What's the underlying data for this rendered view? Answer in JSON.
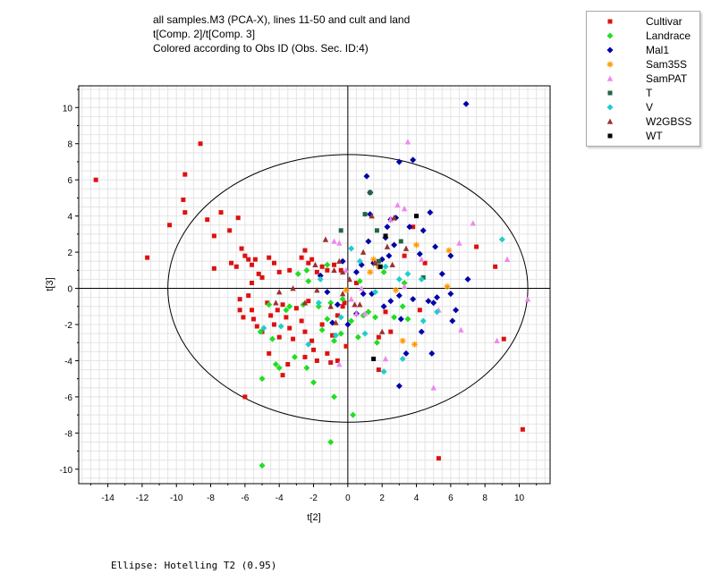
{
  "chart_data": {
    "type": "scatter",
    "title_lines": [
      "all samples.M3 (PCA-X), lines 11-50 and cult and land",
      "t[Comp. 2]/t[Comp. 3]",
      "Colored according to Obs ID (Obs. Sec. ID:4)"
    ],
    "xlabel": "t[2]",
    "ylabel": "t[3]",
    "xlim": [
      -15.7,
      11.8
    ],
    "ylim": [
      -10.8,
      11.2
    ],
    "x_ticks": [
      -14,
      -12,
      -10,
      -8,
      -6,
      -4,
      -2,
      0,
      2,
      4,
      6,
      8,
      10
    ],
    "y_ticks": [
      -10,
      -8,
      -6,
      -4,
      -2,
      0,
      2,
      4,
      6,
      8,
      10
    ],
    "grid": true,
    "legend_position": "top-right",
    "ellipse": {
      "label": "Ellipse: Hotelling T2 (0.95)",
      "center": [
        0,
        0
      ],
      "rx": 10.5,
      "ry": 7.4
    },
    "series": [
      {
        "name": "Cultivar",
        "color": "#dd1111",
        "marker": "square",
        "points": [
          [
            -14.7,
            6.0
          ],
          [
            -11.7,
            1.7
          ],
          [
            -10.4,
            3.5
          ],
          [
            -9.5,
            6.3
          ],
          [
            -9.6,
            4.9
          ],
          [
            -9.5,
            4.2
          ],
          [
            -8.6,
            8.0
          ],
          [
            -8.2,
            3.8
          ],
          [
            -7.4,
            4.2
          ],
          [
            -6.9,
            3.2
          ],
          [
            -6.4,
            3.9
          ],
          [
            -7.8,
            2.9
          ],
          [
            -7.8,
            1.1
          ],
          [
            -6.8,
            1.4
          ],
          [
            -6.5,
            1.2
          ],
          [
            -6.2,
            2.2
          ],
          [
            -5.8,
            1.6
          ],
          [
            -6.0,
            1.8
          ],
          [
            -5.6,
            1.3
          ],
          [
            -5.4,
            1.6
          ],
          [
            -5.6,
            0.3
          ],
          [
            -5.2,
            0.8
          ],
          [
            -5.0,
            0.6
          ],
          [
            -4.6,
            1.7
          ],
          [
            -4.3,
            1.4
          ],
          [
            -4.0,
            0.9
          ],
          [
            -3.4,
            1.0
          ],
          [
            -2.7,
            1.7
          ],
          [
            -2.5,
            2.1
          ],
          [
            -2.3,
            1.4
          ],
          [
            -2.1,
            1.6
          ],
          [
            -1.8,
            0.9
          ],
          [
            -1.5,
            1.2
          ],
          [
            -1.2,
            1.0
          ],
          [
            -0.8,
            1.3
          ],
          [
            -6.3,
            -0.6
          ],
          [
            -6.3,
            -1.2
          ],
          [
            -6.1,
            -1.6
          ],
          [
            -5.8,
            -0.4
          ],
          [
            -5.6,
            -1.2
          ],
          [
            -5.5,
            -1.7
          ],
          [
            -5.3,
            -2.1
          ],
          [
            -5.0,
            -2.4
          ],
          [
            -4.7,
            -0.8
          ],
          [
            -4.5,
            -1.5
          ],
          [
            -4.3,
            -2.0
          ],
          [
            -4.0,
            -2.7
          ],
          [
            -4.1,
            -1.2
          ],
          [
            -3.8,
            -0.9
          ],
          [
            -3.6,
            -1.6
          ],
          [
            -3.4,
            -2.2
          ],
          [
            -3.2,
            -2.8
          ],
          [
            -3.0,
            -1.1
          ],
          [
            -2.7,
            -1.8
          ],
          [
            -2.5,
            -2.4
          ],
          [
            -2.3,
            -0.7
          ],
          [
            -2.1,
            -2.9
          ],
          [
            -2.0,
            -3.4
          ],
          [
            -1.8,
            -4.0
          ],
          [
            -1.5,
            -2.0
          ],
          [
            -1.2,
            -3.6
          ],
          [
            -0.9,
            -2.6
          ],
          [
            -0.6,
            -1.5
          ],
          [
            -0.2,
            -0.8
          ],
          [
            -0.1,
            -3.2
          ],
          [
            -1.0,
            -4.1
          ],
          [
            -3.5,
            -4.2
          ],
          [
            -3.8,
            -4.8
          ],
          [
            -2.5,
            -3.8
          ],
          [
            -4.6,
            -3.6
          ],
          [
            -6.0,
            -6.0
          ],
          [
            -0.6,
            -4.0
          ],
          [
            -0.4,
            1.0
          ],
          [
            0.5,
            0.3
          ],
          [
            -0.3,
            -1.0
          ],
          [
            1.8,
            -2.7
          ],
          [
            1.8,
            -4.5
          ],
          [
            2.5,
            -2.4
          ],
          [
            2.2,
            -1.3
          ],
          [
            3.3,
            1.8
          ],
          [
            3.8,
            3.4
          ],
          [
            4.2,
            -1.2
          ],
          [
            4.5,
            1.4
          ],
          [
            5.3,
            -9.4
          ],
          [
            7.5,
            2.3
          ],
          [
            8.6,
            1.2
          ],
          [
            9.1,
            -2.8
          ],
          [
            10.2,
            -7.8
          ]
        ]
      },
      {
        "name": "Landrace",
        "color": "#22dd22",
        "marker": "diamond",
        "points": [
          [
            -5.0,
            -9.8
          ],
          [
            -5.0,
            -5.0
          ],
          [
            -5.1,
            -2.4
          ],
          [
            -4.6,
            -0.9
          ],
          [
            -4.4,
            -2.8
          ],
          [
            -4.2,
            -4.2
          ],
          [
            -4.0,
            -4.4
          ],
          [
            -3.6,
            -1.2
          ],
          [
            -3.4,
            -1.0
          ],
          [
            -3.1,
            -3.8
          ],
          [
            -2.4,
            -4.4
          ],
          [
            -2.0,
            -5.2
          ],
          [
            -1.7,
            -1.0
          ],
          [
            -1.5,
            -2.3
          ],
          [
            -1.2,
            -1.7
          ],
          [
            -1.0,
            -0.8
          ],
          [
            -1.0,
            -8.5
          ],
          [
            -0.8,
            -6.0
          ],
          [
            -0.4,
            -2.5
          ],
          [
            -0.3,
            -0.6
          ],
          [
            0.2,
            -1.8
          ],
          [
            0.3,
            -7.0
          ],
          [
            0.6,
            -2.7
          ],
          [
            0.7,
            0.4
          ],
          [
            0.9,
            -1.5
          ],
          [
            1.2,
            -1.3
          ],
          [
            1.7,
            -3.0
          ],
          [
            2.1,
            0.9
          ],
          [
            2.7,
            -1.6
          ],
          [
            3.2,
            -1.0
          ],
          [
            3.3,
            0.3
          ],
          [
            3.5,
            -1.7
          ],
          [
            1.6,
            -1.6
          ],
          [
            -2.4,
            1.0
          ],
          [
            -2.3,
            0.4
          ],
          [
            -1.2,
            1.3
          ],
          [
            -2.6,
            -0.9
          ],
          [
            -0.8,
            -2.9
          ],
          [
            -2.9,
            0.8
          ]
        ]
      },
      {
        "name": "Mal1",
        "color": "#0000aa",
        "marker": "diamond",
        "points": [
          [
            6.9,
            10.2
          ],
          [
            3.0,
            7.0
          ],
          [
            3.8,
            7.1
          ],
          [
            1.1,
            6.2
          ],
          [
            1.3,
            5.3
          ],
          [
            1.3,
            4.1
          ],
          [
            2.5,
            3.8
          ],
          [
            2.8,
            3.9
          ],
          [
            3.6,
            3.4
          ],
          [
            4.4,
            3.2
          ],
          [
            4.8,
            4.2
          ],
          [
            2.3,
            3.4
          ],
          [
            2.2,
            2.8
          ],
          [
            2.0,
            1.6
          ],
          [
            1.5,
            1.4
          ],
          [
            0.8,
            1.3
          ],
          [
            0.5,
            0.9
          ],
          [
            0.9,
            -0.3
          ],
          [
            1.4,
            -0.3
          ],
          [
            2.1,
            -1.0
          ],
          [
            2.4,
            1.8
          ],
          [
            2.5,
            -0.7
          ],
          [
            3.0,
            -0.4
          ],
          [
            3.1,
            -1.7
          ],
          [
            3.8,
            -0.6
          ],
          [
            4.2,
            1.9
          ],
          [
            4.7,
            -0.7
          ],
          [
            5.0,
            -0.8
          ],
          [
            5.2,
            -0.5
          ],
          [
            5.5,
            0.8
          ],
          [
            6.0,
            1.8
          ],
          [
            6.0,
            -0.3
          ],
          [
            6.1,
            -1.8
          ],
          [
            4.3,
            -2.4
          ],
          [
            3.4,
            -3.6
          ],
          [
            4.9,
            -3.6
          ],
          [
            3.0,
            -5.4
          ],
          [
            -1.2,
            -0.2
          ],
          [
            -0.9,
            -1.9
          ],
          [
            -0.6,
            -0.9
          ],
          [
            0.0,
            -2.0
          ],
          [
            0.5,
            -1.4
          ],
          [
            1.2,
            2.6
          ],
          [
            1.8,
            1.2
          ],
          [
            7.0,
            0.5
          ],
          [
            6.3,
            -1.2
          ],
          [
            5.1,
            2.3
          ],
          [
            -1.6,
            0.7
          ],
          [
            -0.3,
            1.5
          ],
          [
            2.7,
            2.4
          ]
        ]
      },
      {
        "name": "Sam35S",
        "color": "#ff9900",
        "marker": "star",
        "points": [
          [
            5.9,
            2.1
          ],
          [
            5.8,
            0.1
          ],
          [
            4.0,
            2.4
          ],
          [
            3.9,
            -3.1
          ],
          [
            3.2,
            -2.9
          ],
          [
            2.8,
            -0.1
          ],
          [
            1.8,
            1.2
          ],
          [
            1.3,
            0.9
          ],
          [
            1.5,
            1.6
          ],
          [
            -0.1,
            -0.1
          ]
        ]
      },
      {
        "name": "SamPAT",
        "color": "#ee88ee",
        "marker": "triangle",
        "points": [
          [
            3.5,
            8.1
          ],
          [
            2.9,
            4.6
          ],
          [
            2.5,
            3.8
          ],
          [
            3.3,
            4.4
          ],
          [
            7.3,
            3.6
          ],
          [
            6.5,
            2.5
          ],
          [
            9.3,
            1.6
          ],
          [
            10.5,
            -0.6
          ],
          [
            8.7,
            -2.9
          ],
          [
            5.0,
            -5.5
          ],
          [
            6.6,
            -2.3
          ],
          [
            5.3,
            -1.2
          ],
          [
            4.3,
            1.6
          ],
          [
            3.3,
            0.1
          ],
          [
            0.8,
            0.0
          ],
          [
            -0.1,
            1.0
          ],
          [
            -0.8,
            2.6
          ],
          [
            -0.5,
            2.5
          ],
          [
            0.5,
            -1.4
          ],
          [
            0.2,
            -0.6
          ],
          [
            2.2,
            -3.9
          ],
          [
            -0.5,
            -4.2
          ],
          [
            1.0,
            -1.4
          ]
        ]
      },
      {
        "name": "T",
        "color": "#226644",
        "marker": "square",
        "points": [
          [
            1.3,
            5.3
          ],
          [
            -0.4,
            3.2
          ],
          [
            1.0,
            4.1
          ],
          [
            1.7,
            3.2
          ],
          [
            3.1,
            2.6
          ],
          [
            1.8,
            1.5
          ],
          [
            4.4,
            0.6
          ]
        ]
      },
      {
        "name": "V",
        "color": "#22cccc",
        "marker": "diamond",
        "points": [
          [
            9.0,
            2.7
          ],
          [
            5.2,
            -1.3
          ],
          [
            4.3,
            0.5
          ],
          [
            3.5,
            0.8
          ],
          [
            3.0,
            0.5
          ],
          [
            2.1,
            -4.6
          ],
          [
            1.0,
            -2.5
          ],
          [
            3.2,
            -3.9
          ],
          [
            4.4,
            -1.8
          ],
          [
            -0.4,
            -1.6
          ],
          [
            -2.3,
            -3.1
          ],
          [
            -3.9,
            -2.1
          ],
          [
            -4.9,
            -2.2
          ],
          [
            0.7,
            1.5
          ],
          [
            0.2,
            2.2
          ],
          [
            2.2,
            1.2
          ],
          [
            -1.6,
            0.5
          ],
          [
            -1.7,
            -0.8
          ],
          [
            -0.7,
            -2.6
          ],
          [
            1.6,
            -0.2
          ]
        ]
      },
      {
        "name": "W2GBSS",
        "color": "#993333",
        "marker": "triangle",
        "points": [
          [
            2.7,
            3.9
          ],
          [
            1.4,
            4.0
          ],
          [
            0.9,
            2.0
          ],
          [
            1.6,
            1.4
          ],
          [
            2.3,
            2.3
          ],
          [
            2.6,
            1.3
          ],
          [
            3.4,
            2.2
          ],
          [
            0.4,
            -0.9
          ],
          [
            -0.3,
            0.9
          ],
          [
            -0.8,
            1.0
          ],
          [
            -1.8,
            -0.1
          ],
          [
            -2.5,
            -0.8
          ],
          [
            -3.2,
            0.0
          ],
          [
            -4.0,
            -0.2
          ],
          [
            -4.2,
            -0.8
          ],
          [
            -0.7,
            -1.9
          ],
          [
            -1.0,
            -1.0
          ],
          [
            0.7,
            -0.9
          ],
          [
            2.0,
            -2.4
          ],
          [
            -0.5,
            1.5
          ],
          [
            0.1,
            0.5
          ],
          [
            -0.3,
            -0.3
          ],
          [
            -1.9,
            1.3
          ],
          [
            -1.3,
            2.7
          ]
        ]
      },
      {
        "name": "WT",
        "color": "#000000",
        "marker": "square",
        "points": [
          [
            4.0,
            4.0
          ],
          [
            2.2,
            2.9
          ],
          [
            1.9,
            1.2
          ],
          [
            1.5,
            -3.9
          ]
        ]
      }
    ]
  },
  "footer": {
    "ellipse_label": "Ellipse: Hotelling T2 (0.95)"
  }
}
